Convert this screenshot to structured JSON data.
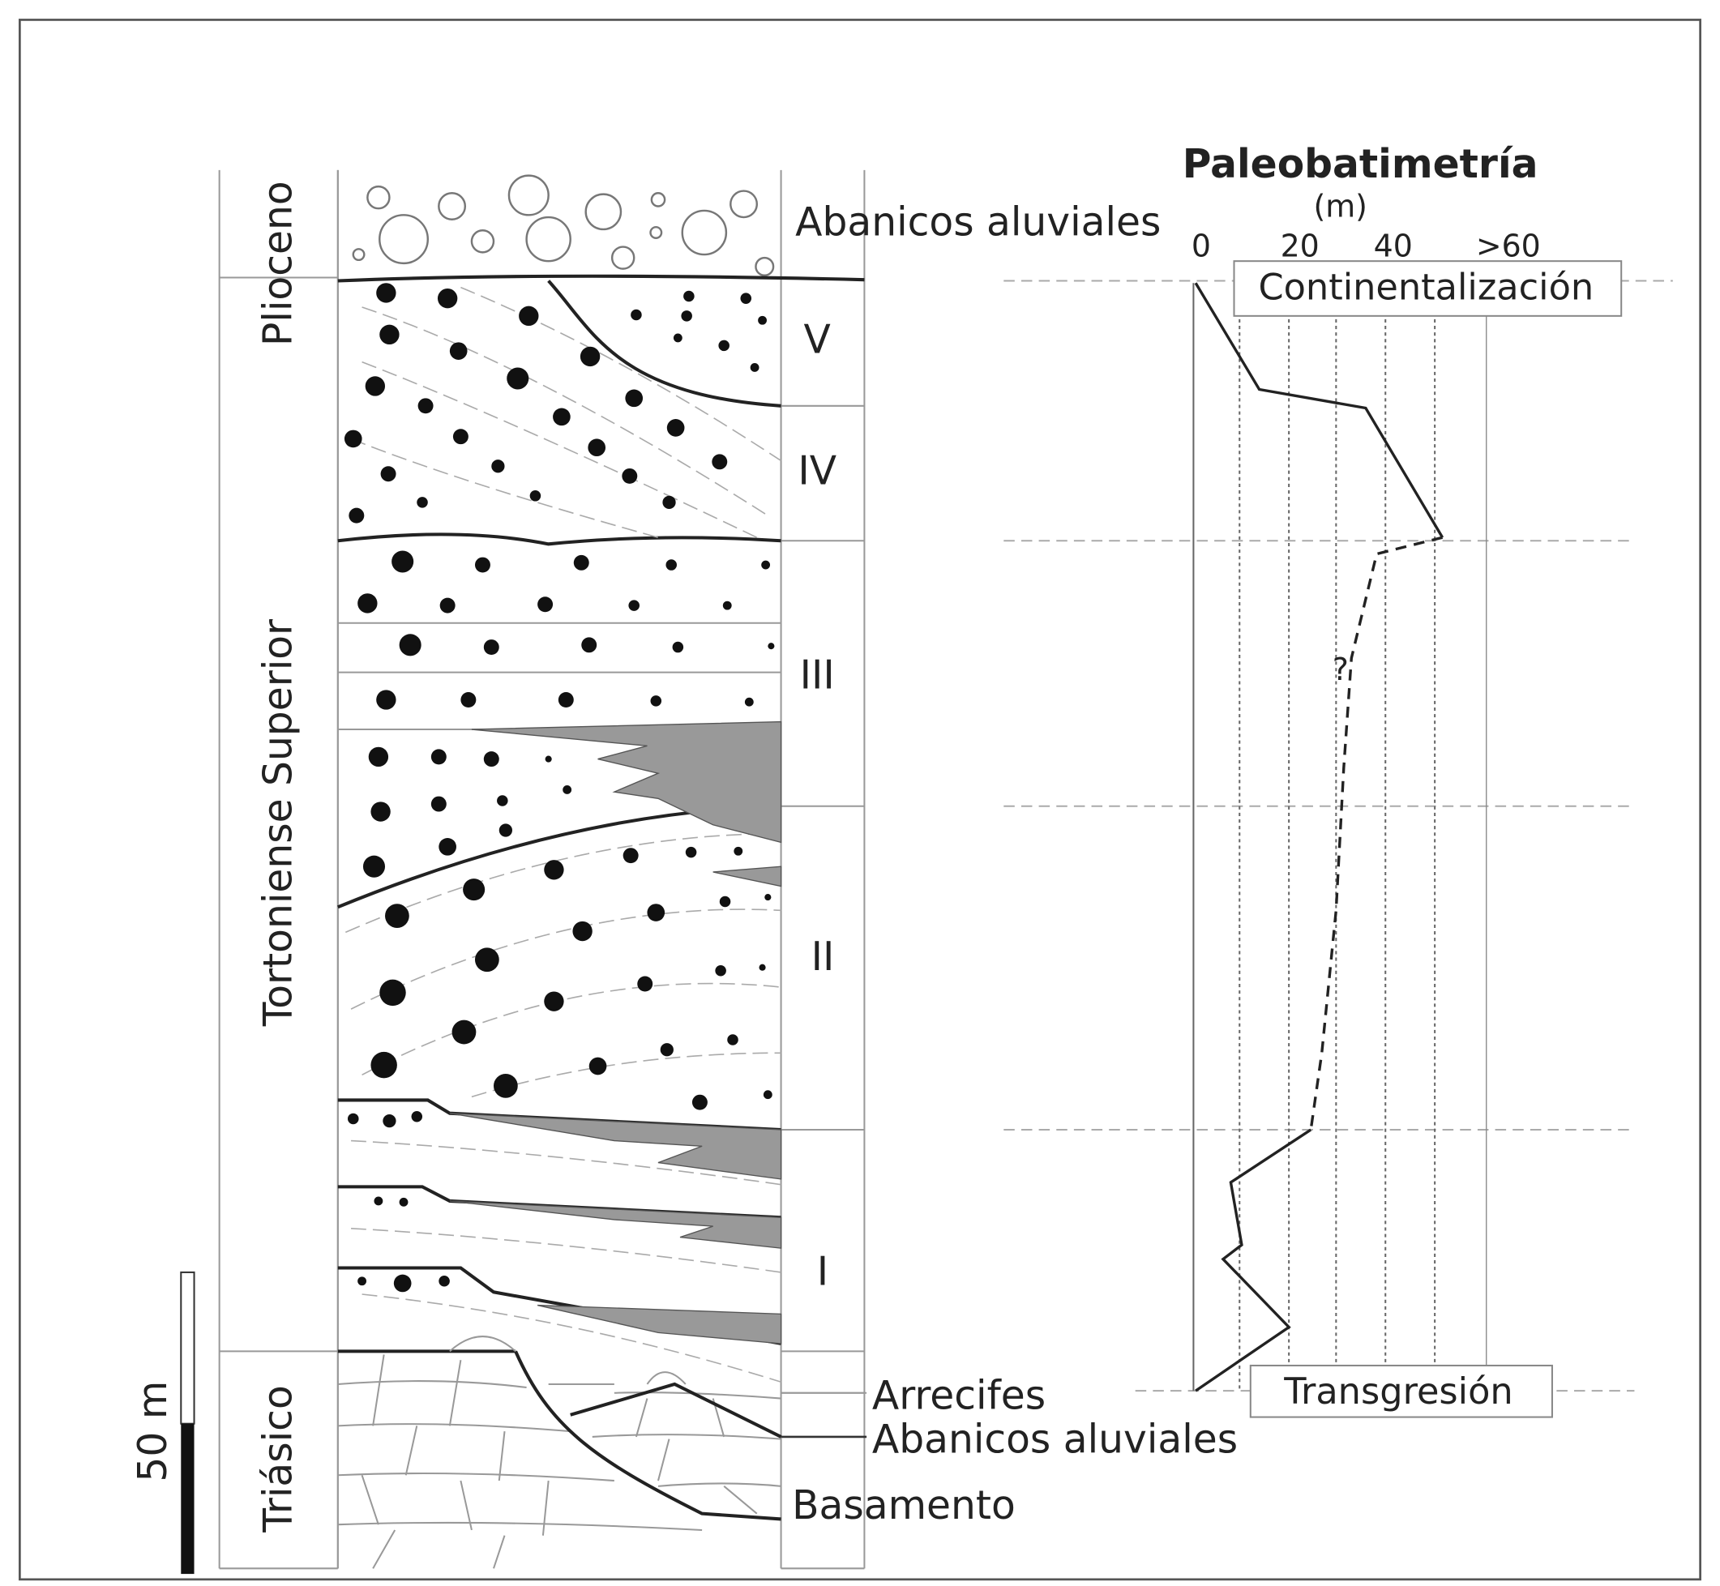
{
  "columns": {
    "periods": [
      "Plioceno",
      "Tortoniense Superior",
      "Triásico"
    ],
    "units": [
      "V",
      "IV",
      "III",
      "II",
      "I"
    ],
    "annotations": [
      "Abanicos aluviales",
      "Arrecifes",
      "Abanicos aluviales",
      "Basamento"
    ],
    "scale": "50 m"
  },
  "paleobathymetry": {
    "title": "Paleobatimetría",
    "unit": "(m)",
    "ticks": [
      "0",
      "20",
      "40",
      ">60"
    ],
    "top_label": "Continentalización",
    "bottom_label": "Transgresión",
    "uncertain": "?"
  }
}
